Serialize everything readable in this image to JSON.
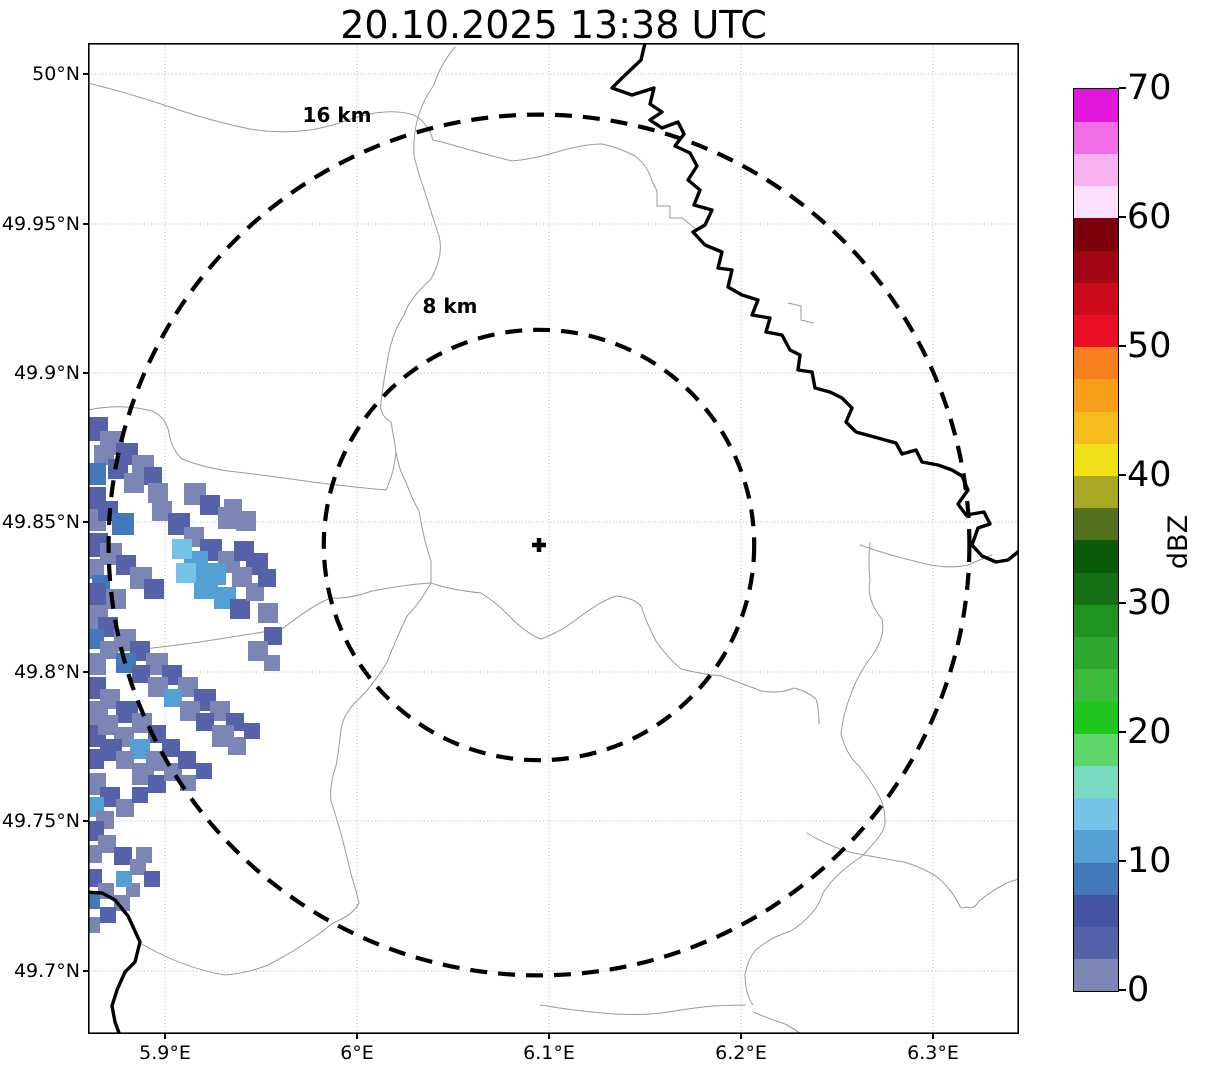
{
  "title": "20.10.2025 13:38 UTC",
  "map": {
    "center_marker": "+",
    "range_rings": [
      {
        "label": "16 km",
        "radius_km": 16
      },
      {
        "label": "8 km",
        "radius_km": 8
      }
    ],
    "x_axis": {
      "tick_labels": [
        "5.9°E",
        "6°E",
        "6.1°E",
        "6.2°E",
        "6.3°E"
      ]
    },
    "y_axis": {
      "tick_labels": [
        "50°N",
        "49.95°N",
        "49.9°N",
        "49.85°N",
        "49.8°N",
        "49.75°N",
        "49.7°N"
      ]
    }
  },
  "colorbar": {
    "label": "dBZ",
    "tick_labels": [
      "0",
      "10",
      "20",
      "30",
      "40",
      "50",
      "60",
      "70"
    ],
    "min": 0,
    "max": 70,
    "segment_step": 2.5,
    "segment_colors_bottom_to_top": [
      "#7b86b4",
      "#5562aa",
      "#4254a2",
      "#4379ba",
      "#54a0d4",
      "#74c2e6",
      "#79d9c3",
      "#5fd768",
      "#1fc51f",
      "#3abb3a",
      "#2da72d",
      "#209320",
      "#156f15",
      "#0b5a0b",
      "#53701c",
      "#a8a824",
      "#efe018",
      "#f6bb1c",
      "#f79f18",
      "#f57f20",
      "#ea0e24",
      "#cc0a1c",
      "#a30514",
      "#7c010c",
      "#fce1fa",
      "#f8b1f0",
      "#f06ee8",
      "#e316dc"
    ]
  },
  "chart_data": {
    "type": "heatmap",
    "title": "20.10.2025 13:38 UTC",
    "units": "dBZ",
    "value_range": [
      0,
      70
    ],
    "x_range_deg_east": [
      5.86,
      6.35
    ],
    "y_range_deg_north": [
      49.665,
      50.005
    ],
    "radar_site": {
      "lon_deg_east": 6.095,
      "lat_deg_north": 49.842
    },
    "echo_summary": "Precipitation echoes only in the southwest sector, mostly 0-15 dBZ",
    "echo_cells": [
      [
        -4,
        374,
        24,
        1
      ],
      [
        12,
        388,
        24,
        0
      ],
      [
        28,
        400,
        22,
        1
      ],
      [
        6,
        402,
        20,
        0
      ],
      [
        44,
        412,
        22,
        0
      ],
      [
        20,
        416,
        20,
        1
      ],
      [
        -4,
        420,
        22,
        3
      ],
      [
        36,
        430,
        20,
        0
      ],
      [
        56,
        424,
        18,
        1
      ],
      [
        60,
        440,
        20,
        0
      ],
      [
        136,
        456,
        18,
        0
      ],
      [
        96,
        440,
        22,
        0
      ],
      [
        112,
        452,
        20,
        1
      ],
      [
        130,
        464,
        22,
        0
      ],
      [
        148,
        468,
        20,
        0
      ],
      [
        64,
        458,
        20,
        0
      ],
      [
        80,
        470,
        22,
        1
      ],
      [
        96,
        484,
        20,
        0
      ],
      [
        112,
        496,
        22,
        1
      ],
      [
        130,
        508,
        22,
        0
      ],
      [
        146,
        498,
        20,
        1
      ],
      [
        158,
        510,
        22,
        1
      ],
      [
        144,
        524,
        20,
        0
      ],
      [
        116,
        520,
        22,
        4
      ],
      [
        96,
        508,
        24,
        4
      ],
      [
        84,
        496,
        20,
        5
      ],
      [
        106,
        532,
        24,
        4
      ],
      [
        126,
        544,
        22,
        4
      ],
      [
        142,
        556,
        20,
        1
      ],
      [
        158,
        540,
        18,
        0
      ],
      [
        170,
        526,
        18,
        1
      ],
      [
        88,
        520,
        20,
        5
      ],
      [
        -4,
        444,
        22,
        1
      ],
      [
        -4,
        466,
        22,
        0
      ],
      [
        10,
        458,
        20,
        1
      ],
      [
        24,
        470,
        22,
        3
      ],
      [
        -4,
        490,
        24,
        1
      ],
      [
        12,
        500,
        22,
        0
      ],
      [
        28,
        512,
        20,
        1
      ],
      [
        -4,
        516,
        20,
        0
      ],
      [
        42,
        524,
        22,
        0
      ],
      [
        56,
        536,
        20,
        1
      ],
      [
        4,
        532,
        18,
        3
      ],
      [
        18,
        546,
        20,
        0
      ],
      [
        -4,
        540,
        22,
        1
      ],
      [
        -4,
        562,
        24,
        0
      ],
      [
        10,
        574,
        20,
        1
      ],
      [
        26,
        586,
        22,
        0
      ],
      [
        42,
        598,
        20,
        1
      ],
      [
        -4,
        586,
        20,
        3
      ],
      [
        58,
        610,
        22,
        0
      ],
      [
        74,
        622,
        20,
        1
      ],
      [
        12,
        598,
        18,
        0
      ],
      [
        28,
        610,
        20,
        3
      ],
      [
        -4,
        610,
        22,
        0
      ],
      [
        44,
        622,
        18,
        1
      ],
      [
        60,
        634,
        20,
        0
      ],
      [
        -4,
        634,
        22,
        1
      ],
      [
        12,
        646,
        20,
        0
      ],
      [
        28,
        658,
        22,
        1
      ],
      [
        90,
        634,
        20,
        0
      ],
      [
        106,
        646,
        22,
        1
      ],
      [
        122,
        658,
        20,
        0
      ],
      [
        138,
        670,
        18,
        1
      ],
      [
        76,
        646,
        18,
        4
      ],
      [
        92,
        658,
        20,
        0
      ],
      [
        108,
        670,
        18,
        1
      ],
      [
        44,
        670,
        20,
        0
      ],
      [
        60,
        682,
        18,
        1
      ],
      [
        124,
        682,
        22,
        0
      ],
      [
        140,
        694,
        18,
        0
      ],
      [
        156,
        680,
        16,
        1
      ],
      [
        170,
        560,
        20,
        0
      ],
      [
        176,
        584,
        18,
        1
      ],
      [
        160,
        598,
        20,
        0
      ],
      [
        176,
        612,
        16,
        0
      ],
      [
        -4,
        658,
        24,
        0
      ],
      [
        -4,
        682,
        22,
        1
      ],
      [
        10,
        672,
        20,
        0
      ],
      [
        26,
        684,
        20,
        0
      ],
      [
        12,
        696,
        22,
        1
      ],
      [
        42,
        696,
        20,
        4
      ],
      [
        -4,
        706,
        20,
        1
      ],
      [
        28,
        708,
        18,
        0
      ],
      [
        58,
        708,
        20,
        0
      ],
      [
        74,
        696,
        18,
        1
      ],
      [
        44,
        720,
        22,
        0
      ],
      [
        60,
        732,
        18,
        1
      ],
      [
        -4,
        730,
        22,
        0
      ],
      [
        12,
        744,
        20,
        1
      ],
      [
        28,
        756,
        18,
        0
      ],
      [
        76,
        720,
        18,
        0
      ],
      [
        90,
        708,
        18,
        1
      ],
      [
        -4,
        754,
        20,
        4
      ],
      [
        8,
        768,
        18,
        0
      ],
      [
        44,
        744,
        16,
        1
      ],
      [
        92,
        732,
        16,
        0
      ],
      [
        108,
        720,
        16,
        1
      ],
      [
        -4,
        778,
        20,
        1
      ],
      [
        10,
        792,
        18,
        0
      ],
      [
        26,
        804,
        18,
        1
      ],
      [
        -4,
        802,
        18,
        0
      ],
      [
        42,
        816,
        16,
        0
      ],
      [
        -4,
        826,
        18,
        1
      ],
      [
        10,
        840,
        16,
        0
      ],
      [
        56,
        828,
        16,
        1
      ],
      [
        26,
        852,
        16,
        0
      ],
      [
        -4,
        850,
        16,
        3
      ],
      [
        12,
        864,
        16,
        1
      ],
      [
        38,
        840,
        14,
        0
      ],
      [
        28,
        828,
        16,
        4
      ],
      [
        48,
        804,
        16,
        0
      ],
      [
        -4,
        874,
        16,
        0
      ]
    ]
  }
}
